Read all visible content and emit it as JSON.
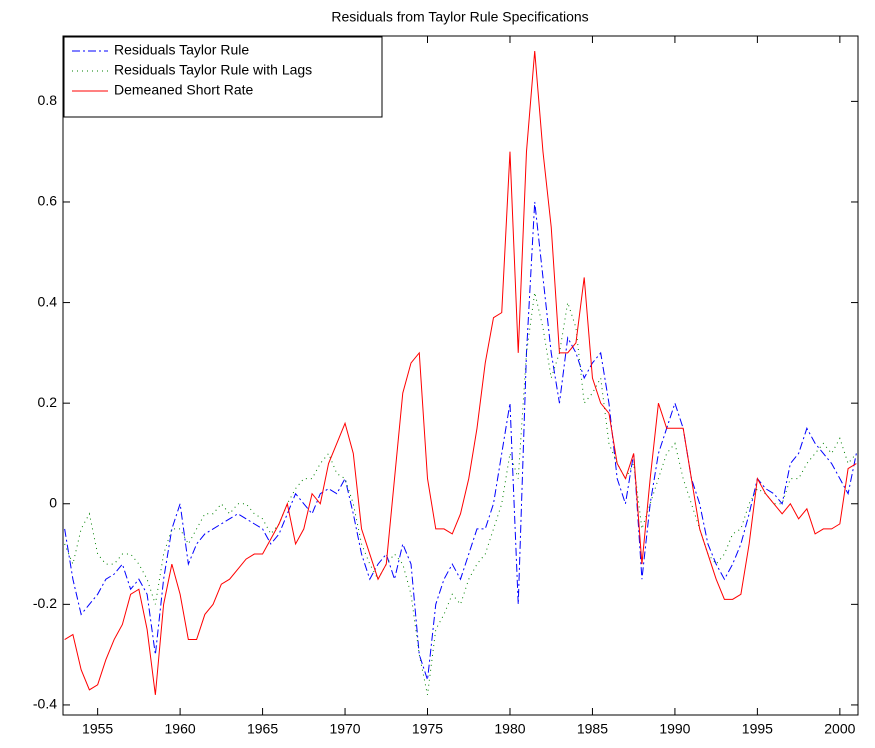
{
  "chart_data": {
    "type": "line",
    "title": "Residuals from Taylor Rule Specifications",
    "x": [
      1953,
      1953.5,
      1954,
      1954.5,
      1955,
      1955.5,
      1956,
      1956.5,
      1957,
      1957.5,
      1958,
      1958.5,
      1959,
      1959.5,
      1960,
      1960.5,
      1961,
      1961.5,
      1962,
      1962.5,
      1963,
      1963.5,
      1964,
      1964.5,
      1965,
      1965.5,
      1966,
      1966.5,
      1967,
      1967.5,
      1968,
      1968.5,
      1969,
      1969.5,
      1970,
      1970.5,
      1971,
      1971.5,
      1972,
      1972.5,
      1973,
      1973.5,
      1974,
      1974.5,
      1975,
      1975.5,
      1976,
      1976.5,
      1977,
      1977.5,
      1978,
      1978.5,
      1979,
      1979.5,
      1980,
      1980.5,
      1981,
      1981.5,
      1982,
      1982.5,
      1983,
      1983.5,
      1984,
      1984.5,
      1985,
      1985.5,
      1986,
      1986.5,
      1987,
      1987.5,
      1988,
      1988.5,
      1989,
      1989.5,
      1990,
      1990.5,
      1991,
      1991.5,
      1992,
      1992.5,
      1993,
      1993.5,
      1994,
      1994.5,
      1995,
      1995.5,
      1996,
      1996.5,
      1997,
      1997.5,
      1998,
      1998.5,
      1999,
      1999.5,
      2000,
      2000.5,
      2001
    ],
    "series": [
      {
        "name": "Residuals Taylor Rule",
        "color": "#0000ff",
        "linestyle": "dashdot",
        "values": [
          -0.05,
          -0.15,
          -0.22,
          -0.2,
          -0.18,
          -0.15,
          -0.14,
          -0.12,
          -0.17,
          -0.15,
          -0.18,
          -0.3,
          -0.15,
          -0.05,
          0.0,
          -0.12,
          -0.08,
          -0.06,
          -0.05,
          -0.04,
          -0.03,
          -0.02,
          -0.03,
          -0.04,
          -0.05,
          -0.08,
          -0.06,
          -0.02,
          0.02,
          0.0,
          -0.02,
          0.02,
          0.03,
          0.02,
          0.05,
          -0.02,
          -0.1,
          -0.15,
          -0.12,
          -0.1,
          -0.15,
          -0.08,
          -0.12,
          -0.3,
          -0.35,
          -0.2,
          -0.15,
          -0.12,
          -0.15,
          -0.1,
          -0.05,
          -0.05,
          0.0,
          0.1,
          0.2,
          -0.2,
          0.3,
          0.6,
          0.45,
          0.3,
          0.2,
          0.33,
          0.3,
          0.25,
          0.28,
          0.3,
          0.2,
          0.05,
          0.0,
          0.1,
          -0.15,
          0.0,
          0.1,
          0.15,
          0.2,
          0.15,
          0.05,
          0.0,
          -0.08,
          -0.12,
          -0.15,
          -0.12,
          -0.08,
          -0.02,
          0.05,
          0.03,
          0.02,
          0.0,
          0.08,
          0.1,
          0.15,
          0.12,
          0.1,
          0.08,
          0.05,
          0.02,
          0.1
        ]
      },
      {
        "name": "Residuals Taylor Rule with Lags",
        "color": "#008000",
        "linestyle": "dotted",
        "values": [
          -0.08,
          -0.12,
          -0.05,
          -0.02,
          -0.1,
          -0.12,
          -0.12,
          -0.1,
          -0.1,
          -0.12,
          -0.15,
          -0.2,
          -0.1,
          -0.05,
          -0.05,
          -0.08,
          -0.05,
          -0.02,
          -0.02,
          0.0,
          -0.02,
          0.0,
          0.0,
          -0.02,
          -0.03,
          -0.06,
          -0.04,
          0.0,
          0.03,
          0.05,
          0.05,
          0.08,
          0.1,
          0.06,
          0.05,
          0.0,
          -0.08,
          -0.12,
          -0.15,
          -0.12,
          -0.1,
          -0.12,
          -0.18,
          -0.3,
          -0.38,
          -0.25,
          -0.22,
          -0.18,
          -0.2,
          -0.15,
          -0.12,
          -0.1,
          -0.05,
          0.0,
          0.1,
          0.05,
          0.3,
          0.42,
          0.35,
          0.25,
          0.3,
          0.4,
          0.35,
          0.2,
          0.22,
          0.25,
          0.12,
          0.08,
          0.05,
          0.08,
          -0.05,
          0.0,
          0.05,
          0.1,
          0.12,
          0.05,
          0.0,
          -0.05,
          -0.1,
          -0.12,
          -0.1,
          -0.06,
          -0.05,
          0.0,
          0.03,
          0.02,
          0.0,
          0.0,
          0.05,
          0.05,
          0.08,
          0.1,
          0.12,
          0.1,
          0.13,
          0.08,
          0.1
        ]
      },
      {
        "name": "Demeaned Short Rate",
        "color": "#ff0000",
        "linestyle": "solid",
        "values": [
          -0.27,
          -0.26,
          -0.33,
          -0.37,
          -0.36,
          -0.31,
          -0.27,
          -0.24,
          -0.18,
          -0.17,
          -0.25,
          -0.38,
          -0.2,
          -0.12,
          -0.18,
          -0.27,
          -0.27,
          -0.22,
          -0.2,
          -0.16,
          -0.15,
          -0.13,
          -0.11,
          -0.1,
          -0.1,
          -0.07,
          -0.04,
          0.0,
          -0.08,
          -0.05,
          0.02,
          0.0,
          0.08,
          0.12,
          0.16,
          0.1,
          -0.05,
          -0.1,
          -0.15,
          -0.12,
          0.05,
          0.22,
          0.28,
          0.3,
          0.05,
          -0.05,
          -0.05,
          -0.06,
          -0.02,
          0.05,
          0.15,
          0.28,
          0.37,
          0.38,
          0.7,
          0.3,
          0.7,
          0.9,
          0.7,
          0.55,
          0.3,
          0.3,
          0.32,
          0.45,
          0.25,
          0.2,
          0.18,
          0.08,
          0.05,
          0.1,
          -0.12,
          0.05,
          0.2,
          0.15,
          0.15,
          0.15,
          0.05,
          -0.05,
          -0.1,
          -0.15,
          -0.19,
          -0.19,
          -0.18,
          -0.08,
          0.05,
          0.02,
          0.0,
          -0.02,
          0.0,
          -0.03,
          -0.01,
          -0.06,
          -0.05,
          -0.05,
          -0.04,
          0.07,
          0.08
        ]
      }
    ],
    "xlim": [
      1952.9,
      2001.1
    ],
    "ylim": [
      -0.42,
      0.93
    ],
    "xticks": [
      1955,
      1960,
      1965,
      1970,
      1975,
      1980,
      1985,
      1990,
      1995,
      2000
    ],
    "yticks": [
      -0.4,
      -0.2,
      0,
      0.2,
      0.4,
      0.6,
      0.8
    ],
    "grid": false,
    "legend": "upper-left"
  }
}
